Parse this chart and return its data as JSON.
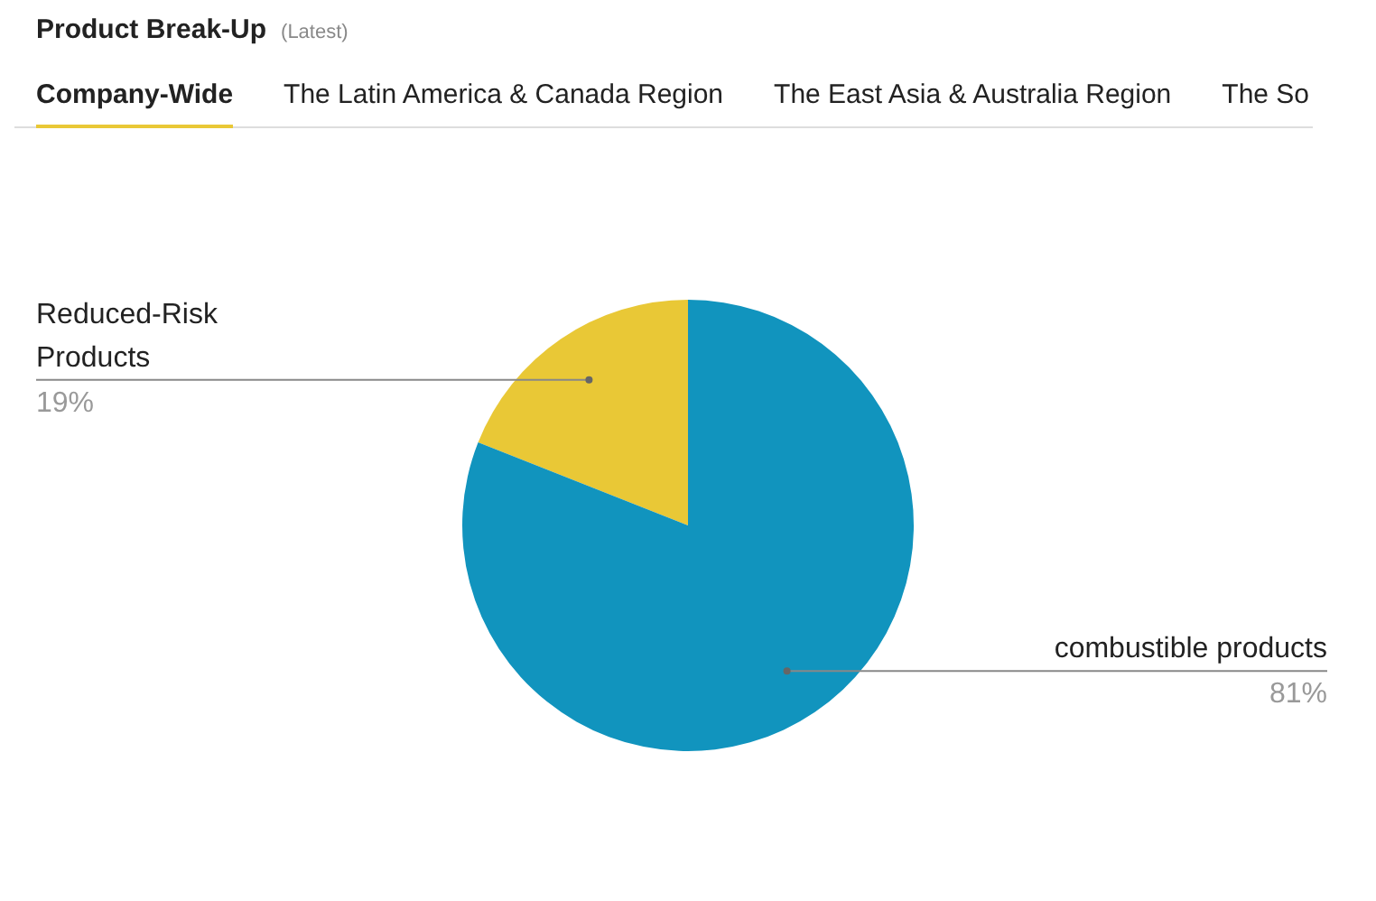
{
  "chart_data": {
    "type": "pie",
    "title": "Product Break-Up",
    "subtitle": "(Latest)",
    "annotations": [
      "Company-Wide",
      "The Latin America & Canada Region",
      "The East Asia & Australia Region",
      "The So"
    ],
    "categories": [
      "Reduced-Risk Products",
      "combustible products"
    ],
    "values": [
      19,
      81
    ],
    "colors": [
      "#e9c836",
      "#1194be"
    ],
    "value_labels": [
      "19%",
      "81%"
    ],
    "legend": false
  }
}
